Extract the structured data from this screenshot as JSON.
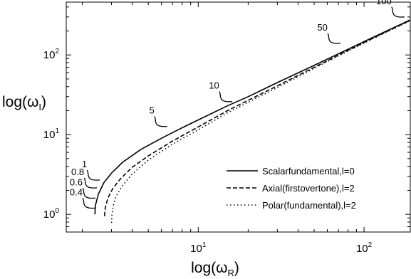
{
  "chart_data": {
    "type": "line",
    "xscale": "log",
    "yscale": "log",
    "xlim": [
      1.6,
      190
    ],
    "ylim": [
      0.6,
      460
    ],
    "xlabel_main": "log(ω",
    "xlabel_sub": "R",
    "ylabel_main": "log(ω",
    "ylabel_sub": "I",
    "x_ticks": [
      {
        "value": 10,
        "base": "10",
        "exp": "1"
      },
      {
        "value": 100,
        "base": "10",
        "exp": "2"
      }
    ],
    "y_ticks": [
      {
        "value": 1,
        "base": "10",
        "exp": "0"
      },
      {
        "value": 10,
        "base": "10",
        "exp": "1"
      },
      {
        "value": 100,
        "base": "10",
        "exp": "2"
      }
    ],
    "series": [
      {
        "name": "Scalarfundamental,l=0",
        "dash": "solid",
        "x": [
          2.38,
          2.4,
          2.5,
          2.7,
          3.0,
          3.5,
          4.5,
          6,
          8,
          10,
          15,
          20,
          30,
          50,
          80,
          120,
          190
        ],
        "y": [
          1.0,
          1.3,
          1.8,
          2.5,
          3.3,
          4.5,
          6.5,
          9.0,
          12.2,
          15.3,
          23,
          30,
          45,
          74,
          118,
          176,
          275
        ]
      },
      {
        "name": "Axial(firstovertone),l=2",
        "dash": "dashed",
        "x": [
          2.72,
          2.75,
          2.85,
          3.05,
          3.4,
          4.0,
          5,
          7,
          10,
          15,
          20,
          30,
          50,
          80,
          120,
          190
        ],
        "y": [
          0.95,
          1.2,
          1.6,
          2.1,
          2.8,
          3.9,
          5.4,
          8.3,
          12.5,
          20,
          27,
          41,
          70,
          114,
          172,
          272
        ]
      },
      {
        "name": "Polar(fundamental),l=2",
        "dash": "dotted",
        "x": [
          3.0,
          3.02,
          3.08,
          3.2,
          3.5,
          4.0,
          5,
          7,
          10,
          15,
          20,
          30,
          50,
          80,
          120,
          190
        ],
        "y": [
          0.78,
          1.0,
          1.3,
          1.7,
          2.3,
          3.2,
          4.8,
          7.6,
          11.5,
          18.8,
          25.5,
          39,
          68,
          112,
          170,
          270
        ]
      }
    ],
    "annotations": [
      {
        "label": "0.4",
        "x": 2.4,
        "y": 1.2
      },
      {
        "label": "0.6",
        "x": 2.4,
        "y": 1.6
      },
      {
        "label": "0.8",
        "x": 2.45,
        "y": 2.15
      },
      {
        "label": "1",
        "x": 2.55,
        "y": 2.7
      },
      {
        "label": "5",
        "x": 6.5,
        "y": 12.7
      },
      {
        "label": "10",
        "x": 16,
        "y": 26
      },
      {
        "label": "50",
        "x": 72,
        "y": 140
      },
      {
        "label": "100",
        "x": 175,
        "y": 300
      }
    ],
    "legend_position": "bottom-right",
    "grid": false
  }
}
